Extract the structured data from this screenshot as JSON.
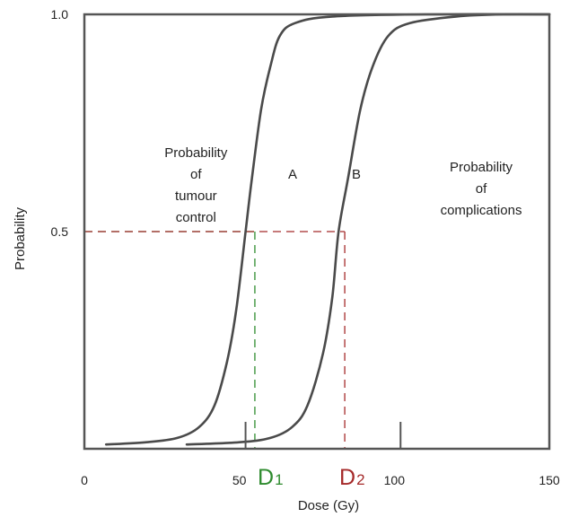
{
  "chart_data": {
    "type": "line",
    "xlabel": "Dose (Gy)",
    "ylabel": "Probability",
    "xlim": [
      0,
      150
    ],
    "ylim": [
      0,
      1.0
    ],
    "x_ticks": [
      {
        "value": 0,
        "label": "0"
      },
      {
        "value": 50,
        "label": "50"
      },
      {
        "value": 100,
        "label": "100"
      },
      {
        "value": 150,
        "label": "150"
      }
    ],
    "y_ticks": [
      {
        "value": 0.5,
        "label": "0.5"
      },
      {
        "value": 1.0,
        "label": "1.0"
      }
    ],
    "series": [
      {
        "name": "A",
        "description": "Probability of tumour control",
        "color": "#4a4a4a",
        "points": [
          [
            7,
            0.01
          ],
          [
            20,
            0.015
          ],
          [
            30,
            0.025
          ],
          [
            37,
            0.05
          ],
          [
            42,
            0.1
          ],
          [
            46,
            0.2
          ],
          [
            49,
            0.32
          ],
          [
            52,
            0.5
          ],
          [
            54,
            0.62
          ],
          [
            57,
            0.78
          ],
          [
            60,
            0.88
          ],
          [
            63,
            0.95
          ],
          [
            68,
            0.98
          ],
          [
            80,
            0.995
          ],
          [
            110,
            1.0
          ],
          [
            150,
            1.0
          ]
        ]
      },
      {
        "name": "B",
        "description": "Probability of complications",
        "color": "#4a4a4a",
        "points": [
          [
            33,
            0.01
          ],
          [
            50,
            0.015
          ],
          [
            60,
            0.025
          ],
          [
            67,
            0.05
          ],
          [
            72,
            0.1
          ],
          [
            77,
            0.22
          ],
          [
            80,
            0.35
          ],
          [
            82,
            0.5
          ],
          [
            85,
            0.62
          ],
          [
            89,
            0.78
          ],
          [
            93,
            0.88
          ],
          [
            98,
            0.95
          ],
          [
            105,
            0.98
          ],
          [
            120,
            0.995
          ],
          [
            135,
            1.0
          ],
          [
            150,
            1.0
          ]
        ]
      }
    ],
    "reference_lines": [
      {
        "label": "D1",
        "x": 55,
        "y": 0.5,
        "color": "#2e8b2e"
      },
      {
        "label": "D2",
        "x": 84,
        "y": 0.5,
        "color": "#a52a2a"
      }
    ],
    "small_ticks_x": [
      52,
      102
    ],
    "annotations": [
      {
        "lines": [
          "Probability",
          "of",
          "tumour",
          "control"
        ],
        "x": 36,
        "y": 0.7
      },
      {
        "lines": [
          "Probability",
          "of",
          "complications"
        ],
        "x": 128,
        "y": 0.65
      }
    ],
    "grid": false
  },
  "labels": {
    "d1_main": "D",
    "d1_sub": "1",
    "d2_main": "D",
    "d2_sub": "2",
    "curve_a": "A",
    "curve_b": "B"
  }
}
